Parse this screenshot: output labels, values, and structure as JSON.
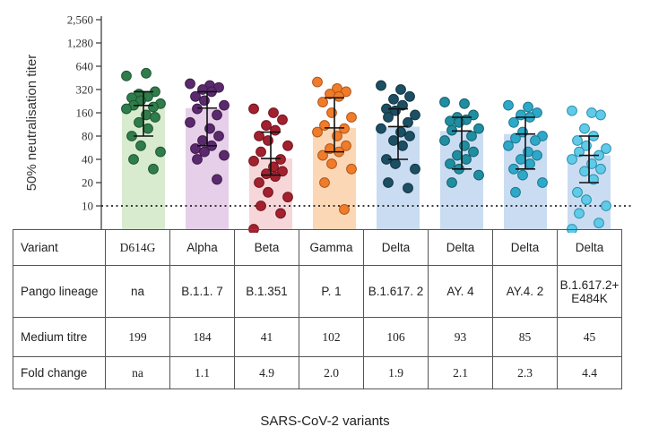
{
  "chart_data": {
    "type": "bar",
    "ylabel": "50% neutralisation titer",
    "xlabel": "SARS-CoV-2 variants",
    "yscale": "log2",
    "ylim": [
      5,
      2560
    ],
    "yticks": [
      10,
      20,
      40,
      80,
      160,
      320,
      640,
      1280,
      2560
    ],
    "ytick_labels": [
      "10",
      "20",
      "40",
      "80",
      "160",
      "320",
      "640",
      "1,280",
      "2,560"
    ],
    "threshold": 10,
    "threshold_style": "dotted",
    "grid": false,
    "categories": [
      "D614G",
      "Alpha",
      "Beta",
      "Gamma",
      "Delta",
      "Delta",
      "Delta",
      "Delta"
    ],
    "series": [
      {
        "bar_color": "#d8ebcf",
        "point_color": "#2f7d4a",
        "point_edge": "#1f5533",
        "median": 199,
        "q1": 80,
        "q3": 300,
        "points": [
          480,
          520,
          300,
          280,
          260,
          250,
          230,
          210,
          200,
          190,
          180,
          150,
          140,
          120,
          100,
          80,
          60,
          50,
          40,
          30
        ]
      },
      {
        "bar_color": "#e6cfe8",
        "point_color": "#5b2a6e",
        "point_edge": "#3d1b4b",
        "median": 184,
        "q1": 60,
        "q3": 300,
        "points": [
          380,
          360,
          340,
          320,
          300,
          260,
          230,
          200,
          180,
          150,
          120,
          100,
          80,
          70,
          60,
          55,
          50,
          45,
          40,
          22
        ]
      },
      {
        "bar_color": "#f7d6da",
        "point_color": "#a3212e",
        "point_edge": "#70141e",
        "median": 41,
        "q1": 25,
        "q3": 90,
        "points": [
          180,
          160,
          130,
          110,
          95,
          80,
          70,
          60,
          50,
          40,
          38,
          32,
          28,
          26,
          24,
          20,
          15,
          13,
          10,
          8,
          5
        ]
      },
      {
        "bar_color": "#fbd7b6",
        "point_color": "#f07c2a",
        "point_edge": "#b0561a",
        "median": 102,
        "q1": 50,
        "q3": 250,
        "points": [
          400,
          330,
          300,
          280,
          260,
          220,
          160,
          140,
          110,
          100,
          90,
          80,
          60,
          55,
          50,
          45,
          35,
          30,
          20,
          9
        ]
      },
      {
        "bar_color": "#c9dcf2",
        "point_color": "#1c4f63",
        "point_edge": "#113542",
        "median": 106,
        "q1": 40,
        "q3": 180,
        "points": [
          360,
          320,
          260,
          240,
          200,
          180,
          170,
          150,
          140,
          120,
          100,
          90,
          80,
          70,
          60,
          40,
          35,
          30,
          20,
          17
        ]
      },
      {
        "bar_color": "#c9dcf2",
        "point_color": "#1f8ea0",
        "point_edge": "#14606d",
        "median": 93,
        "q1": 30,
        "q3": 140,
        "points": [
          220,
          210,
          150,
          140,
          130,
          125,
          120,
          100,
          95,
          80,
          70,
          60,
          50,
          45,
          40,
          35,
          30,
          25,
          20
        ]
      },
      {
        "bar_color": "#c9dcf2",
        "point_color": "#2ea8c9",
        "point_edge": "#1d7890",
        "median": 85,
        "q1": 30,
        "q3": 140,
        "points": [
          200,
          190,
          160,
          150,
          140,
          120,
          90,
          80,
          75,
          70,
          60,
          50,
          45,
          40,
          35,
          30,
          25,
          20,
          15
        ]
      },
      {
        "bar_color": "#c9dcf2",
        "point_color": "#5fcbe8",
        "point_edge": "#2e8fad",
        "median": 45,
        "q1": 20,
        "q3": 80,
        "points": [
          170,
          160,
          150,
          100,
          80,
          70,
          60,
          55,
          50,
          45,
          40,
          35,
          30,
          28,
          22,
          15,
          12,
          10,
          8,
          6,
          5
        ]
      }
    ]
  },
  "table": {
    "variant_header": "Variant",
    "pango_header": "Pango lineage",
    "titre_header": "Medium titre",
    "fold_header": "Fold change",
    "variants": [
      "D614G",
      "Alpha",
      "Beta",
      "Gamma",
      "Delta",
      "Delta",
      "Delta",
      "Delta"
    ],
    "pango": [
      "na",
      "B.1.1. 7",
      "B.1.351",
      "P. 1",
      "B.1.617. 2",
      "AY. 4",
      "AY.4. 2",
      "B.1.617.2+ E484K"
    ],
    "titres": [
      "199",
      "184",
      "41",
      "102",
      "106",
      "93",
      "85",
      "45"
    ],
    "fold": [
      "na",
      "1.1",
      "4.9",
      "2.0",
      "1.9",
      "2.1",
      "2.3",
      "4.4"
    ]
  }
}
